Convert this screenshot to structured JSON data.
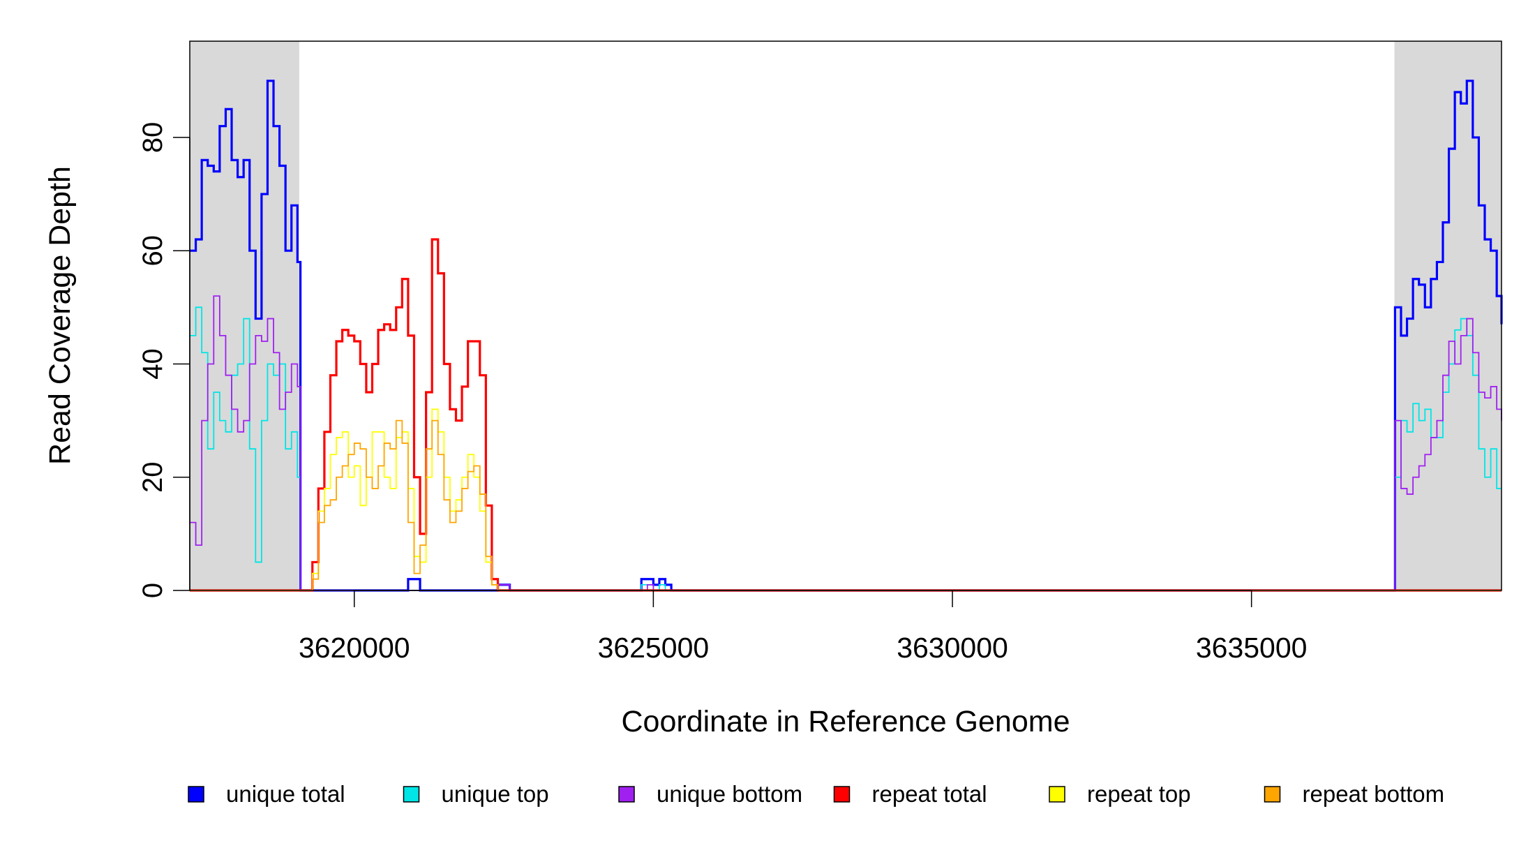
{
  "chart_data": {
    "type": "step",
    "x_label": "Coordinate in Reference Genome",
    "y_label": "Read Coverage Depth",
    "xlim": [
      3617250,
      3639180
    ],
    "ylim": [
      0,
      97
    ],
    "xticks": [
      3620000,
      3625000,
      3630000,
      3635000
    ],
    "yticks": [
      0,
      20,
      40,
      60,
      80
    ],
    "shaded_regions": [
      [
        3617250,
        3619080
      ],
      [
        3637390,
        3639180
      ]
    ],
    "shade_color": "#d9d9d9",
    "x": [
      3617250,
      3617350,
      3617450,
      3617550,
      3617650,
      3617750,
      3617850,
      3617950,
      3618050,
      3618150,
      3618250,
      3618350,
      3618450,
      3618550,
      3618650,
      3618750,
      3618850,
      3618950,
      3619050,
      3619100,
      3619200,
      3619300,
      3619400,
      3619500,
      3619600,
      3619700,
      3619800,
      3619900,
      3620000,
      3620100,
      3620200,
      3620300,
      3620400,
      3620500,
      3620600,
      3620700,
      3620800,
      3620900,
      3621000,
      3621100,
      3621200,
      3621300,
      3621400,
      3621500,
      3621600,
      3621700,
      3621800,
      3621900,
      3622000,
      3622100,
      3622200,
      3622300,
      3622400,
      3622500,
      3622600,
      3623000,
      3624800,
      3624900,
      3625000,
      3625100,
      3625200,
      3625300,
      3630000,
      3637300,
      3637400,
      3637500,
      3637600,
      3637700,
      3637800,
      3637900,
      3638000,
      3638100,
      3638200,
      3638300,
      3638400,
      3638500,
      3638600,
      3638700,
      3638800,
      3638900,
      3639000,
      3639100,
      3639180
    ],
    "series": [
      {
        "name": "unique total",
        "color": "#0000ff",
        "width": 3.2,
        "values": [
          60,
          62,
          76,
          75,
          74,
          82,
          85,
          76,
          73,
          76,
          60,
          48,
          70,
          90,
          82,
          75,
          60,
          68,
          58,
          0,
          0,
          0,
          0,
          0,
          0,
          0,
          0,
          0,
          0,
          0,
          0,
          0,
          0,
          0,
          0,
          0,
          0,
          2,
          2,
          0,
          0,
          0,
          0,
          0,
          0,
          0,
          0,
          0,
          0,
          0,
          0,
          0,
          1,
          1,
          0,
          0,
          2,
          2,
          1,
          2,
          1,
          0,
          0,
          0,
          50,
          45,
          48,
          55,
          54,
          50,
          55,
          58,
          65,
          78,
          88,
          86,
          90,
          80,
          68,
          62,
          60,
          52,
          47
        ]
      },
      {
        "name": "unique top",
        "color": "#00e5e5",
        "width": 1.8,
        "values": [
          45,
          50,
          42,
          25,
          35,
          30,
          28,
          38,
          40,
          48,
          25,
          5,
          30,
          40,
          38,
          40,
          25,
          28,
          20,
          0,
          0,
          0,
          0,
          0,
          0,
          0,
          0,
          0,
          0,
          0,
          0,
          0,
          0,
          0,
          0,
          0,
          0,
          0,
          0,
          0,
          0,
          0,
          0,
          0,
          0,
          0,
          0,
          0,
          0,
          0,
          0,
          0,
          0,
          0,
          0,
          0,
          1,
          1,
          0,
          1,
          0,
          0,
          0,
          0,
          20,
          30,
          28,
          33,
          30,
          32,
          27,
          27,
          35,
          40,
          46,
          48,
          45,
          38,
          25,
          20,
          25,
          18,
          18
        ]
      },
      {
        "name": "unique bottom",
        "color": "#a020f0",
        "width": 1.8,
        "values": [
          12,
          8,
          30,
          40,
          52,
          45,
          38,
          32,
          28,
          30,
          40,
          45,
          44,
          48,
          42,
          32,
          35,
          40,
          36,
          0,
          0,
          0,
          0,
          0,
          0,
          0,
          0,
          0,
          0,
          0,
          0,
          0,
          0,
          0,
          0,
          0,
          0,
          0,
          0,
          0,
          0,
          0,
          0,
          0,
          0,
          0,
          0,
          0,
          0,
          0,
          0,
          0,
          1,
          1,
          0,
          0,
          0,
          1,
          0,
          0,
          0,
          0,
          0,
          0,
          30,
          18,
          17,
          20,
          22,
          24,
          27,
          30,
          38,
          44,
          40,
          45,
          48,
          42,
          35,
          34,
          36,
          32,
          30
        ]
      },
      {
        "name": "repeat total",
        "color": "#ff0000",
        "width": 3.2,
        "values": [
          0,
          0,
          0,
          0,
          0,
          0,
          0,
          0,
          0,
          0,
          0,
          0,
          0,
          0,
          0,
          0,
          0,
          0,
          0,
          0,
          0,
          5,
          18,
          28,
          38,
          44,
          46,
          45,
          44,
          40,
          35,
          40,
          46,
          47,
          46,
          50,
          55,
          45,
          20,
          10,
          35,
          62,
          56,
          40,
          32,
          30,
          36,
          44,
          44,
          38,
          15,
          2,
          0,
          0,
          0,
          0,
          0,
          0,
          0,
          0,
          0,
          0,
          0,
          0,
          0,
          0,
          0,
          0,
          0,
          0,
          0,
          0,
          0,
          0,
          0,
          0,
          0,
          0,
          0,
          0,
          0,
          0,
          0
        ]
      },
      {
        "name": "repeat top",
        "color": "#ffff00",
        "width": 1.8,
        "values": [
          0,
          0,
          0,
          0,
          0,
          0,
          0,
          0,
          0,
          0,
          0,
          0,
          0,
          0,
          0,
          0,
          0,
          0,
          0,
          0,
          0,
          3,
          14,
          18,
          24,
          27,
          28,
          20,
          22,
          15,
          20,
          28,
          28,
          20,
          18,
          27,
          28,
          18,
          6,
          5,
          20,
          32,
          28,
          20,
          14,
          16,
          20,
          24,
          20,
          14,
          5,
          1,
          0,
          0,
          0,
          0,
          0,
          0,
          0,
          0,
          0,
          0,
          0,
          0,
          0,
          0,
          0,
          0,
          0,
          0,
          0,
          0,
          0,
          0,
          0,
          0,
          0,
          0,
          0,
          0,
          0,
          0,
          0
        ]
      },
      {
        "name": "repeat bottom",
        "color": "#ffa500",
        "width": 1.8,
        "values": [
          0,
          0,
          0,
          0,
          0,
          0,
          0,
          0,
          0,
          0,
          0,
          0,
          0,
          0,
          0,
          0,
          0,
          0,
          0,
          0,
          0,
          2,
          12,
          15,
          16,
          20,
          22,
          24,
          26,
          25,
          20,
          18,
          22,
          26,
          25,
          30,
          26,
          12,
          3,
          8,
          25,
          30,
          24,
          16,
          12,
          14,
          18,
          21,
          22,
          17,
          6,
          1,
          0,
          0,
          0,
          0,
          0,
          0,
          0,
          0,
          0,
          0,
          0,
          0,
          0,
          0,
          0,
          0,
          0,
          0,
          0,
          0,
          0,
          0,
          0,
          0,
          0,
          0,
          0,
          0,
          0,
          0,
          0
        ]
      }
    ]
  }
}
